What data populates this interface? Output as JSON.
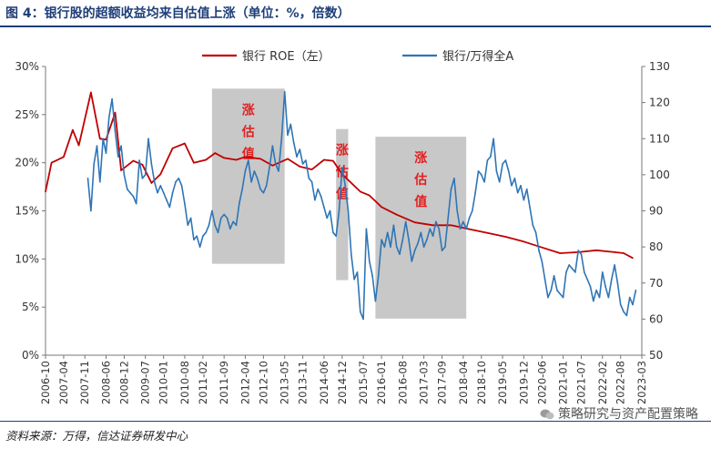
{
  "header": {
    "title": "图 4：银行股的超额收益均来自估值上涨（单位：%，倍数）"
  },
  "footer": {
    "source": "资料来源：万得，信达证券研发中心",
    "watermark": "策略研究与资产配置策略"
  },
  "chart_data": {
    "type": "line",
    "legend": {
      "placement": "top-center",
      "entries": [
        "银行 ROE（左）",
        "银行/万得全A"
      ]
    },
    "x_tick_labels": [
      "2006-10",
      "2007-04",
      "2007-11",
      "2008-06",
      "2008-12",
      "2009-07",
      "2010-01",
      "2010-08",
      "2011-02",
      "2011-09",
      "2012-04",
      "2012-10",
      "2013-05",
      "2013-11",
      "2014-06",
      "2014-12",
      "2015-07",
      "2016-01",
      "2016-08",
      "2017-03",
      "2017-09",
      "2018-04",
      "2018-10",
      "2019-05",
      "2019-12",
      "2020-06",
      "2021-01",
      "2021-07",
      "2022-02",
      "2022-08",
      "2023-03"
    ],
    "y_left": {
      "ticks": [
        "0%",
        "5%",
        "10%",
        "15%",
        "20%",
        "25%",
        "30%"
      ],
      "range": [
        0,
        30
      ]
    },
    "y_right": {
      "ticks": [
        "50",
        "60",
        "70",
        "80",
        "90",
        "100",
        "110",
        "120",
        "130"
      ],
      "range": [
        50,
        130
      ]
    },
    "shaded_regions": [
      {
        "label": "涨估值",
        "x_start": "2011-05",
        "x_end": "2013-05",
        "y_left_range": [
          9.5,
          27.7
        ]
      },
      {
        "label": "涨估值",
        "x_start": "2014-10",
        "x_end": "2015-02",
        "y_left_range": [
          7.8,
          23.5
        ]
      },
      {
        "label": "涨估值",
        "x_start": "2015-11",
        "x_end": "2018-05",
        "y_left_range": [
          3.8,
          22.7
        ]
      }
    ],
    "series": [
      {
        "name": "银行 ROE（左）",
        "axis": "left",
        "color": "#c00000",
        "points": [
          [
            "2006-10",
            17.0
          ],
          [
            "2006-12",
            20.0
          ],
          [
            "2007-04",
            20.6
          ],
          [
            "2007-07",
            23.4
          ],
          [
            "2007-09",
            21.8
          ],
          [
            "2008-01",
            27.3
          ],
          [
            "2008-04",
            22.5
          ],
          [
            "2008-06",
            22.4
          ],
          [
            "2008-09",
            25.2
          ],
          [
            "2008-11",
            19.2
          ],
          [
            "2009-03",
            20.2
          ],
          [
            "2009-06",
            19.8
          ],
          [
            "2009-09",
            17.9
          ],
          [
            "2009-12",
            18.8
          ],
          [
            "2010-04",
            21.5
          ],
          [
            "2010-08",
            22.0
          ],
          [
            "2010-11",
            20.0
          ],
          [
            "2011-03",
            20.3
          ],
          [
            "2011-06",
            21.0
          ],
          [
            "2011-09",
            20.5
          ],
          [
            "2012-01",
            20.3
          ],
          [
            "2012-04",
            20.6
          ],
          [
            "2012-09",
            20.4
          ],
          [
            "2013-01",
            19.7
          ],
          [
            "2013-06",
            20.4
          ],
          [
            "2013-10",
            19.6
          ],
          [
            "2014-02",
            19.3
          ],
          [
            "2014-06",
            20.3
          ],
          [
            "2014-09",
            20.2
          ],
          [
            "2014-12",
            18.8
          ],
          [
            "2015-06",
            17.0
          ],
          [
            "2015-09",
            16.6
          ],
          [
            "2016-01",
            15.4
          ],
          [
            "2016-06",
            14.6
          ],
          [
            "2016-12",
            13.8
          ],
          [
            "2017-06",
            13.5
          ],
          [
            "2017-12",
            13.5
          ],
          [
            "2018-06",
            13.1
          ],
          [
            "2018-12",
            12.7
          ],
          [
            "2019-06",
            12.3
          ],
          [
            "2019-12",
            11.8
          ],
          [
            "2020-06",
            11.2
          ],
          [
            "2020-12",
            10.6
          ],
          [
            "2021-06",
            10.7
          ],
          [
            "2021-12",
            10.9
          ],
          [
            "2022-06",
            10.7
          ],
          [
            "2022-09",
            10.6
          ],
          [
            "2022-12",
            10.1
          ]
        ]
      },
      {
        "name": "银行/万得全A",
        "axis": "right",
        "color": "#2e75b6",
        "points": [
          [
            "2007-12",
            99
          ],
          [
            "2008-01",
            90
          ],
          [
            "2008-02",
            103
          ],
          [
            "2008-03",
            108
          ],
          [
            "2008-04",
            98
          ],
          [
            "2008-05",
            110
          ],
          [
            "2008-06",
            106
          ],
          [
            "2008-07",
            116
          ],
          [
            "2008-08",
            121
          ],
          [
            "2008-09",
            112
          ],
          [
            "2008-10",
            105
          ],
          [
            "2008-11",
            108
          ],
          [
            "2008-12",
            100
          ],
          [
            "2009-01",
            96
          ],
          [
            "2009-02",
            95
          ],
          [
            "2009-03",
            94
          ],
          [
            "2009-04",
            92
          ],
          [
            "2009-05",
            104
          ],
          [
            "2009-06",
            99
          ],
          [
            "2009-07",
            100
          ],
          [
            "2009-08",
            110
          ],
          [
            "2009-09",
            103
          ],
          [
            "2009-10",
            98
          ],
          [
            "2009-11",
            95
          ],
          [
            "2009-12",
            97
          ],
          [
            "2010-01",
            95
          ],
          [
            "2010-02",
            93
          ],
          [
            "2010-03",
            91
          ],
          [
            "2010-04",
            95
          ],
          [
            "2010-05",
            98
          ],
          [
            "2010-06",
            99
          ],
          [
            "2010-07",
            97
          ],
          [
            "2010-08",
            92
          ],
          [
            "2010-09",
            86
          ],
          [
            "2010-10",
            88
          ],
          [
            "2010-11",
            82
          ],
          [
            "2010-12",
            83
          ],
          [
            "2011-01",
            80
          ],
          [
            "2011-02",
            83
          ],
          [
            "2011-03",
            84
          ],
          [
            "2011-04",
            86
          ],
          [
            "2011-05",
            90
          ],
          [
            "2011-06",
            86
          ],
          [
            "2011-07",
            84
          ],
          [
            "2011-08",
            88
          ],
          [
            "2011-09",
            89
          ],
          [
            "2011-10",
            88
          ],
          [
            "2011-11",
            85
          ],
          [
            "2011-12",
            87
          ],
          [
            "2012-01",
            86
          ],
          [
            "2012-02",
            92
          ],
          [
            "2012-03",
            96
          ],
          [
            "2012-04",
            101
          ],
          [
            "2012-05",
            104
          ],
          [
            "2012-06",
            98
          ],
          [
            "2012-07",
            101
          ],
          [
            "2012-08",
            99
          ],
          [
            "2012-09",
            96
          ],
          [
            "2012-10",
            95
          ],
          [
            "2012-11",
            97
          ],
          [
            "2012-12",
            102
          ],
          [
            "2013-01",
            108
          ],
          [
            "2013-02",
            103
          ],
          [
            "2013-03",
            101
          ],
          [
            "2013-04",
            110
          ],
          [
            "2013-05",
            123
          ],
          [
            "2013-06",
            111
          ],
          [
            "2013-07",
            114
          ],
          [
            "2013-08",
            109
          ],
          [
            "2013-09",
            105
          ],
          [
            "2013-10",
            107
          ],
          [
            "2013-11",
            103
          ],
          [
            "2013-12",
            104
          ],
          [
            "2014-01",
            99
          ],
          [
            "2014-02",
            98
          ],
          [
            "2014-03",
            93
          ],
          [
            "2014-04",
            96
          ],
          [
            "2014-05",
            94
          ],
          [
            "2014-06",
            91
          ],
          [
            "2014-07",
            88
          ],
          [
            "2014-08",
            90
          ],
          [
            "2014-09",
            84
          ],
          [
            "2014-10",
            83
          ],
          [
            "2014-11",
            90
          ],
          [
            "2014-12",
            102
          ],
          [
            "2015-01",
            97
          ],
          [
            "2015-02",
            90
          ],
          [
            "2015-03",
            78
          ],
          [
            "2015-04",
            71
          ],
          [
            "2015-05",
            73
          ],
          [
            "2015-06",
            62
          ],
          [
            "2015-07",
            60
          ],
          [
            "2015-08",
            85
          ],
          [
            "2015-09",
            76
          ],
          [
            "2015-10",
            72
          ],
          [
            "2015-11",
            65
          ],
          [
            "2015-12",
            72
          ],
          [
            "2016-01",
            82
          ],
          [
            "2016-02",
            80
          ],
          [
            "2016-03",
            84
          ],
          [
            "2016-04",
            80
          ],
          [
            "2016-05",
            86
          ],
          [
            "2016-06",
            80
          ],
          [
            "2016-07",
            78
          ],
          [
            "2016-08",
            82
          ],
          [
            "2016-09",
            87
          ],
          [
            "2016-10",
            82
          ],
          [
            "2016-11",
            76
          ],
          [
            "2016-12",
            79
          ],
          [
            "2017-01",
            81
          ],
          [
            "2017-02",
            84
          ],
          [
            "2017-03",
            80
          ],
          [
            "2017-04",
            82
          ],
          [
            "2017-05",
            85
          ],
          [
            "2017-06",
            83
          ],
          [
            "2017-07",
            87
          ],
          [
            "2017-08",
            85
          ],
          [
            "2017-09",
            79
          ],
          [
            "2017-10",
            80
          ],
          [
            "2017-11",
            88
          ],
          [
            "2017-12",
            96
          ],
          [
            "2018-01",
            99
          ],
          [
            "2018-02",
            90
          ],
          [
            "2018-03",
            85
          ],
          [
            "2018-04",
            87
          ],
          [
            "2018-05",
            85
          ],
          [
            "2018-06",
            88
          ],
          [
            "2018-07",
            90
          ],
          [
            "2018-08",
            95
          ],
          [
            "2018-09",
            101
          ],
          [
            "2018-10",
            100
          ],
          [
            "2018-11",
            98
          ],
          [
            "2018-12",
            104
          ],
          [
            "2019-01",
            105
          ],
          [
            "2019-02",
            110
          ],
          [
            "2019-03",
            101
          ],
          [
            "2019-04",
            98
          ],
          [
            "2019-05",
            103
          ],
          [
            "2019-06",
            104
          ],
          [
            "2019-07",
            101
          ],
          [
            "2019-08",
            97
          ],
          [
            "2019-09",
            99
          ],
          [
            "2019-10",
            95
          ],
          [
            "2019-11",
            97
          ],
          [
            "2019-12",
            93
          ],
          [
            "2020-01",
            96
          ],
          [
            "2020-02",
            91
          ],
          [
            "2020-03",
            86
          ],
          [
            "2020-04",
            84
          ],
          [
            "2020-05",
            79
          ],
          [
            "2020-06",
            76
          ],
          [
            "2020-07",
            71
          ],
          [
            "2020-08",
            66
          ],
          [
            "2020-09",
            68
          ],
          [
            "2020-10",
            72
          ],
          [
            "2020-11",
            68
          ],
          [
            "2020-12",
            67
          ],
          [
            "2021-01",
            66
          ],
          [
            "2021-02",
            73
          ],
          [
            "2021-03",
            75
          ],
          [
            "2021-04",
            74
          ],
          [
            "2021-05",
            73
          ],
          [
            "2021-06",
            79
          ],
          [
            "2021-07",
            78
          ],
          [
            "2021-08",
            73
          ],
          [
            "2021-09",
            71
          ],
          [
            "2021-10",
            69
          ],
          [
            "2021-11",
            65
          ],
          [
            "2021-12",
            68
          ],
          [
            "2022-01",
            66
          ],
          [
            "2022-02",
            73
          ],
          [
            "2022-03",
            69
          ],
          [
            "2022-04",
            66
          ],
          [
            "2022-05",
            71
          ],
          [
            "2022-06",
            75
          ],
          [
            "2022-07",
            70
          ],
          [
            "2022-08",
            64
          ],
          [
            "2022-09",
            62
          ],
          [
            "2022-10",
            61
          ],
          [
            "2022-11",
            66
          ],
          [
            "2022-12",
            64
          ],
          [
            "2023-01",
            68
          ]
        ]
      }
    ]
  }
}
